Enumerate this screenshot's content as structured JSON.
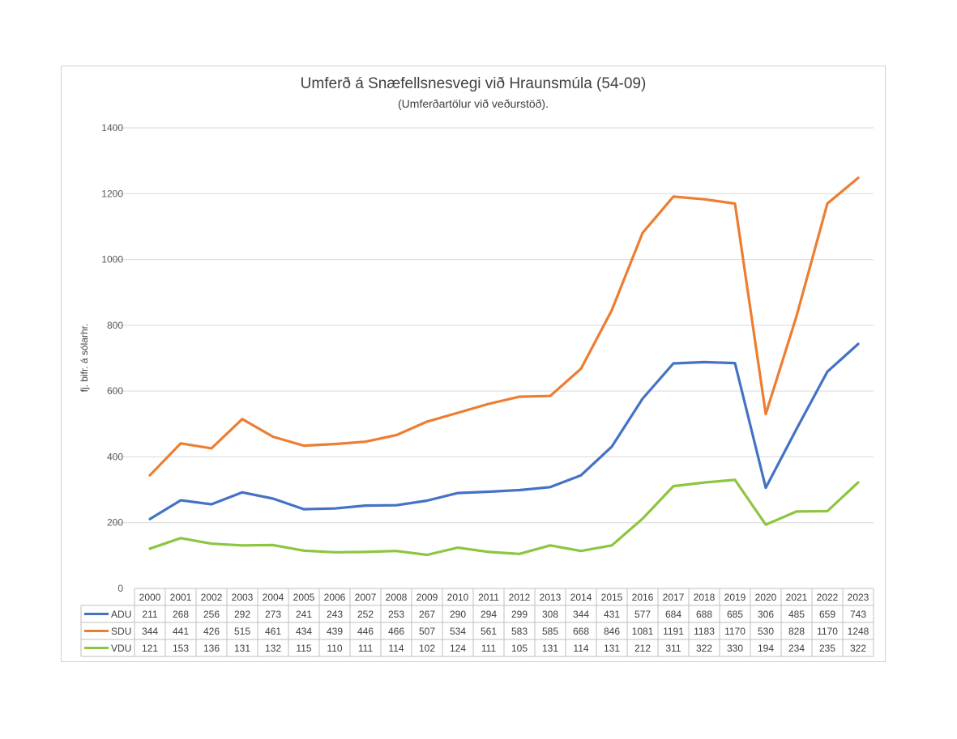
{
  "chart_data": {
    "type": "line",
    "title": "Umferð á Snæfellsnesvegi við Hraunsmúla (54-09)",
    "subtitle": "(Umferðartölur við veðurstöð).",
    "xlabel": "",
    "ylabel": "fj. bifr. á sólarhr.",
    "ylim": [
      0,
      1400
    ],
    "yticks": [
      0,
      200,
      400,
      600,
      800,
      1000,
      1200,
      1400
    ],
    "grid": true,
    "legend": "data-table",
    "categories": [
      "2000",
      "2001",
      "2002",
      "2003",
      "2004",
      "2005",
      "2006",
      "2007",
      "2008",
      "2009",
      "2010",
      "2011",
      "2012",
      "2013",
      "2014",
      "2015",
      "2016",
      "2017",
      "2018",
      "2019",
      "2020",
      "2021",
      "2022",
      "2023"
    ],
    "series": [
      {
        "name": "ADU",
        "color": "#4472c4",
        "values": [
          211,
          268,
          256,
          292,
          273,
          241,
          243,
          252,
          253,
          267,
          290,
          294,
          299,
          308,
          344,
          431,
          577,
          684,
          688,
          685,
          306,
          485,
          659,
          743
        ]
      },
      {
        "name": "SDU",
        "color": "#ed7d31",
        "values": [
          344,
          441,
          426,
          515,
          461,
          434,
          439,
          446,
          466,
          507,
          534,
          561,
          583,
          585,
          668,
          846,
          1081,
          1191,
          1183,
          1170,
          530,
          828,
          1170,
          1248
        ]
      },
      {
        "name": "VDU",
        "color": "#8cc63f",
        "values": [
          121,
          153,
          136,
          131,
          132,
          115,
          110,
          111,
          114,
          102,
          124,
          111,
          105,
          131,
          114,
          131,
          212,
          311,
          322,
          330,
          194,
          234,
          235,
          322
        ]
      }
    ]
  }
}
